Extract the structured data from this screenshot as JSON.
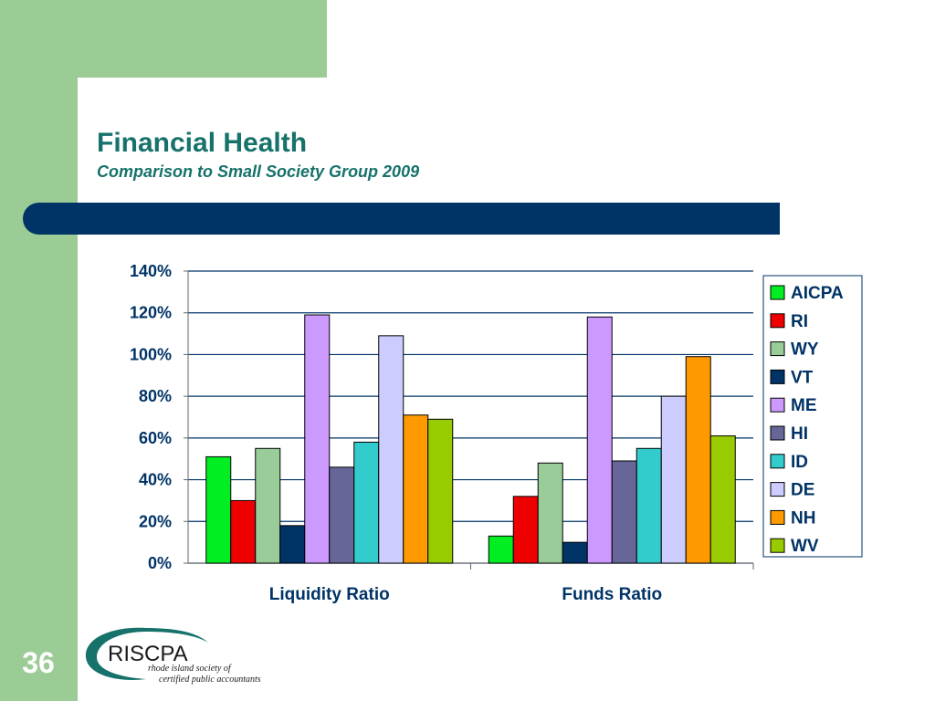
{
  "slide": {
    "title": "Financial Health",
    "subtitle": "Comparison to Small Society Group 2009",
    "number": "36"
  },
  "logo": {
    "name": "RISCPA",
    "tagline_line1": "rhode island society of",
    "tagline_line2": "certified public accountants"
  },
  "colors": {
    "side_band": "#9ccc96",
    "title": "#16726a",
    "bar_band": "#003366"
  },
  "chart_data": {
    "type": "bar",
    "categories": [
      "Liquidity Ratio",
      "Funds Ratio"
    ],
    "series": [
      {
        "name": "AICPA",
        "color": "#00ee22",
        "values": [
          51,
          13
        ]
      },
      {
        "name": "RI",
        "color": "#ee0000",
        "values": [
          30,
          32
        ]
      },
      {
        "name": "WY",
        "color": "#99cc99",
        "values": [
          55,
          48
        ]
      },
      {
        "name": "VT",
        "color": "#003366",
        "values": [
          18,
          10
        ]
      },
      {
        "name": "ME",
        "color": "#cc99ff",
        "values": [
          119,
          118
        ]
      },
      {
        "name": "HI",
        "color": "#666699",
        "values": [
          46,
          49
        ]
      },
      {
        "name": "ID",
        "color": "#33cccc",
        "values": [
          58,
          55
        ]
      },
      {
        "name": "DE",
        "color": "#ccccff",
        "values": [
          109,
          80
        ]
      },
      {
        "name": "NH",
        "color": "#ff9900",
        "values": [
          71,
          99
        ]
      },
      {
        "name": "WV",
        "color": "#99cc00",
        "values": [
          69,
          61
        ]
      }
    ],
    "yticks": [
      "0%",
      "20%",
      "40%",
      "60%",
      "80%",
      "100%",
      "120%",
      "140%"
    ],
    "ylim": [
      0,
      140
    ],
    "grid": true,
    "legend": "right"
  }
}
